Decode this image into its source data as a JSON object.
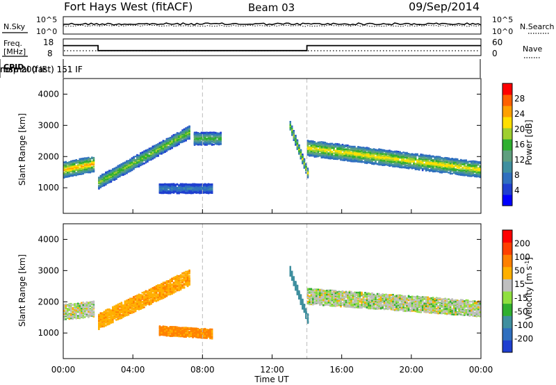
{
  "header": {
    "title": "Fort Hays West (fitACF)",
    "beam": "Beam 03",
    "date": "09/Sep/2014"
  },
  "strip_labels": {
    "nsky": "N.Sky",
    "nsearch": "N.Search",
    "freq_line1": "Freq.",
    "freq_line2": "[MHz]",
    "nave": "Nave",
    "cpid": "CPID"
  },
  "strip_ticks": {
    "noise_left": [
      "10^5",
      "10^0"
    ],
    "noise_right": [
      "10^5",
      "10^0"
    ],
    "freq_left": [
      "18",
      "8"
    ],
    "nave_right": [
      "60",
      "0"
    ]
  },
  "cpid_segments": [
    {
      "label": "normal (fast) 151 IF",
      "start_hour": 0,
      "end_hour": 8
    },
    {
      "label": "rbsp 200 IF",
      "start_hour": 8,
      "end_hour": 14
    },
    {
      "label": "normal (fast) 151 IF",
      "start_hour": 14,
      "end_hour": 24
    }
  ],
  "x_axis": {
    "label": "Time UT",
    "ticks": [
      "00:00",
      "04:00",
      "08:00",
      "12:00",
      "16:00",
      "20:00",
      "00:00"
    ]
  },
  "power_panel": {
    "ylabel": "Slant Range [km]",
    "yticks": [
      "4000",
      "3000",
      "2000",
      "1000"
    ],
    "colorbar_label": "Power [dB]",
    "colorbar_ticks": [
      "28",
      "24",
      "20",
      "16",
      "12",
      "8",
      "4"
    ],
    "colors": [
      "#0000ff",
      "#1f3fd0",
      "#2f6fbf",
      "#3f8f9f",
      "#5f9f7f",
      "#2faf2f",
      "#9fcf2f",
      "#ffdf00",
      "#ffa000",
      "#ff6000",
      "#ff0000"
    ]
  },
  "velocity_panel": {
    "ylabel": "Slant Range [km]",
    "yticks": [
      "4000",
      "3000",
      "2000",
      "1000"
    ],
    "colorbar_label": "Velocity [m s",
    "colorbar_label_sup": "-1",
    "colorbar_label_end": "]",
    "colorbar_ticks": [
      "200",
      "100",
      "50",
      "15",
      "-15",
      "-50",
      "-100",
      "-200"
    ],
    "colors": [
      "#1f3fd0",
      "#2f6fbf",
      "#3f8f9f",
      "#2faf2f",
      "#8fdf3f",
      "#bfbfbf",
      "#ffb000",
      "#ff8000",
      "#ff4000",
      "#ff0000"
    ]
  },
  "chart_data": {
    "type": "heatmap",
    "title": "Fort Hays West (fitACF)",
    "xlabel": "Time UT",
    "ylabel": "Slant Range [km]",
    "xlim": [
      0,
      24
    ],
    "ylim": [
      180,
      4500
    ],
    "mode_change_hours": [
      8,
      14
    ],
    "noise_search_approx": 1000,
    "noise_sky_approx": 1000,
    "frequency_MHz": [
      {
        "start": 0,
        "end": 2,
        "value": 14
      },
      {
        "start": 2,
        "end": 14,
        "value": 11
      },
      {
        "start": 14,
        "end": 24,
        "value": 14
      }
    ],
    "power_dB": {
      "bands": [
        {
          "t0": 0,
          "r0": 1600,
          "t1": 1.8,
          "r1": 1800,
          "width": 500,
          "peak": 24
        },
        {
          "t0": 2,
          "r0": 1200,
          "t1": 7.2,
          "r1": 2800,
          "width": 400,
          "peak": 18
        },
        {
          "t0": 7.5,
          "r0": 2600,
          "t1": 9,
          "r1": 2600,
          "width": 400,
          "peak": 16
        },
        {
          "t0": 5.5,
          "r0": 1000,
          "t1": 8.5,
          "r1": 1000,
          "width": 300,
          "peak": 8
        },
        {
          "t0": 13,
          "r0": 3000,
          "t1": 14,
          "r1": 1500,
          "width": 300,
          "peak": 20
        },
        {
          "t0": 14,
          "r0": 2300,
          "t1": 24,
          "r1": 1600,
          "width": 500,
          "peak": 22
        }
      ]
    },
    "velocity_ms": {
      "bands": [
        {
          "t0": 0,
          "r0": 1700,
          "t1": 1.8,
          "r1": 1800,
          "width": 500,
          "value": 0
        },
        {
          "t0": 2,
          "r0": 1400,
          "t1": 7.2,
          "r1": 2800,
          "width": 500,
          "value": -40
        },
        {
          "t0": 5.5,
          "r0": 1100,
          "t1": 8.5,
          "r1": 1000,
          "width": 300,
          "value": -60
        },
        {
          "t0": 13,
          "r0": 3000,
          "t1": 14,
          "r1": 1500,
          "width": 300,
          "value": 50
        },
        {
          "t0": 14,
          "r0": 2200,
          "t1": 24,
          "r1": 1800,
          "width": 500,
          "value": 0
        }
      ]
    }
  }
}
